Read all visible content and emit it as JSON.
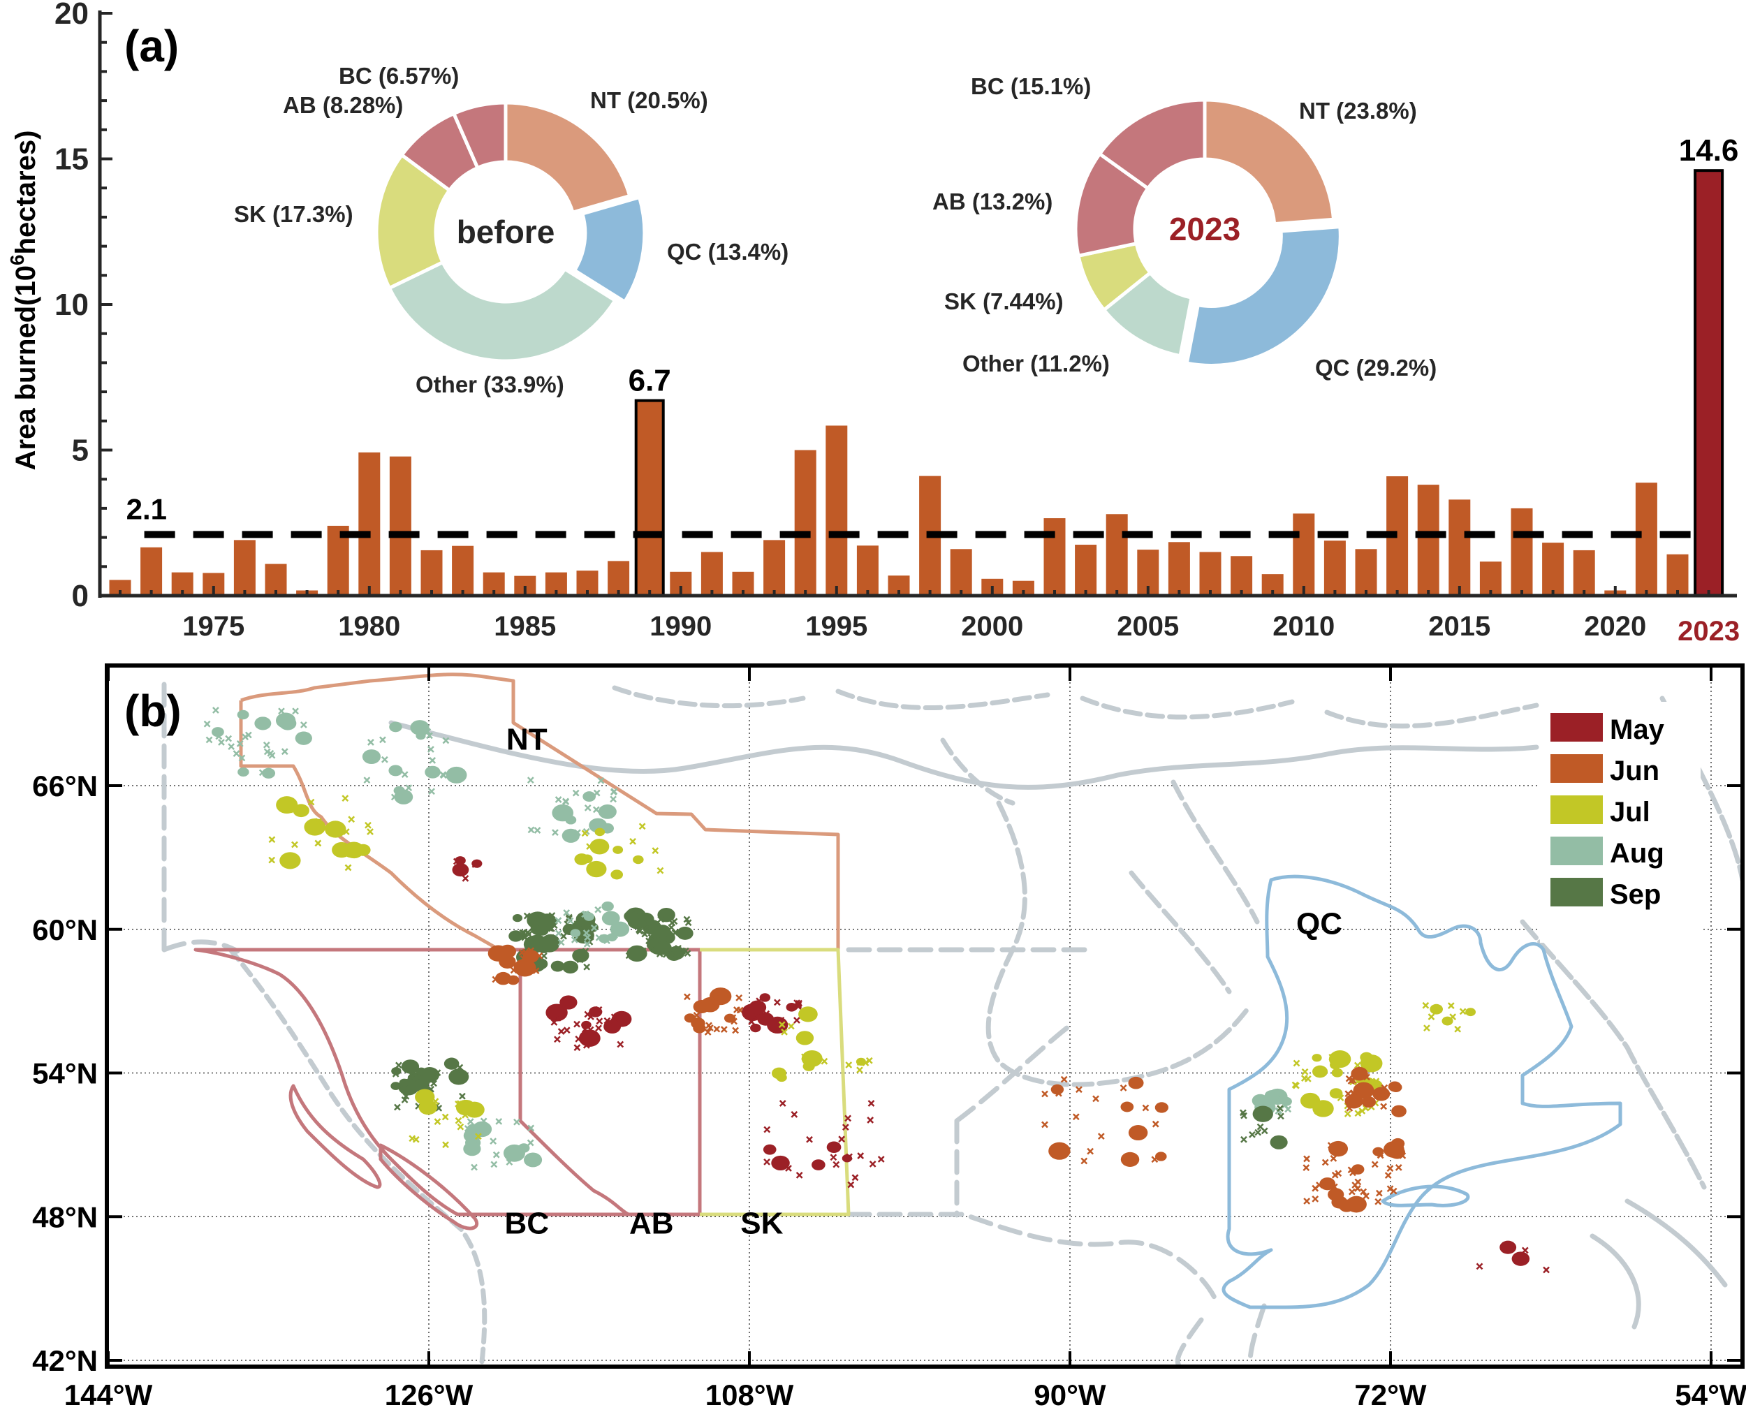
{
  "colors": {
    "bar": "#C05A26",
    "bar_2023": "#9B2026",
    "highlight_year": "#9B2026",
    "NT": "#DA9A7C",
    "QC": "#8DBADA",
    "Other": "#BDD9CC",
    "SK": "#D9DC7D",
    "AB": "#C4777C",
    "BC": "#C4777C",
    "land": "#C3CBD0",
    "May": "#9B2026",
    "Jun": "#C05A26",
    "Jul": "#C2C726",
    "Aug": "#93BDA5",
    "Sep": "#567746"
  },
  "chart_data": [
    {
      "type": "bar",
      "panel_label": "(a)",
      "ylabel": "Area burned(10",
      "ylabel_sup": "6",
      "ylabel_tail": "hectares)",
      "ylim": [
        0,
        20
      ],
      "yticks": [
        "0",
        "5",
        "10",
        "15",
        "20"
      ],
      "xticks": [
        "1975",
        "1980",
        "1985",
        "1990",
        "1995",
        "2000",
        "2005",
        "2010",
        "2015",
        "2020",
        "2023"
      ],
      "categories": [
        1972,
        1973,
        1974,
        1975,
        1976,
        1977,
        1978,
        1979,
        1980,
        1981,
        1982,
        1983,
        1984,
        1985,
        1986,
        1987,
        1988,
        1989,
        1990,
        1991,
        1992,
        1993,
        1994,
        1995,
        1996,
        1997,
        1998,
        1999,
        2000,
        2001,
        2002,
        2003,
        2004,
        2005,
        2006,
        2007,
        2008,
        2009,
        2010,
        2011,
        2012,
        2013,
        2014,
        2015,
        2016,
        2017,
        2018,
        2019,
        2020,
        2021,
        2022,
        2023
      ],
      "values": [
        0.54,
        1.66,
        0.8,
        0.78,
        1.91,
        1.09,
        0.18,
        2.4,
        4.92,
        4.78,
        1.56,
        1.71,
        0.8,
        0.68,
        0.8,
        0.86,
        1.19,
        6.7,
        0.82,
        1.5,
        0.82,
        1.91,
        5.0,
        5.84,
        1.72,
        0.69,
        4.11,
        1.6,
        0.58,
        0.51,
        2.66,
        1.75,
        2.8,
        1.58,
        1.84,
        1.5,
        1.36,
        0.74,
        2.82,
        1.89,
        1.6,
        4.1,
        3.81,
        3.3,
        1.17,
        3.0,
        1.82,
        1.56,
        0.18,
        3.88,
        1.42,
        14.6
      ],
      "mean_line": {
        "value": 2.1,
        "label": "2.1"
      },
      "annotations": [
        {
          "year": 1989,
          "label": "6.7"
        },
        {
          "year": 2023,
          "label": "14.6"
        }
      ]
    },
    {
      "type": "pie",
      "center_label": "before",
      "slices": [
        {
          "name": "NT",
          "value": 20.5,
          "label": "NT (20.5%)"
        },
        {
          "name": "QC",
          "value": 13.4,
          "label": "QC (13.4%)",
          "exploded": true
        },
        {
          "name": "Other",
          "value": 33.9,
          "label": "Other (33.9%)"
        },
        {
          "name": "SK",
          "value": 17.3,
          "label": "SK (17.3%)"
        },
        {
          "name": "AB",
          "value": 8.28,
          "label": "AB (8.28%)"
        },
        {
          "name": "BC",
          "value": 6.57,
          "label": "BC (6.57%)"
        }
      ]
    },
    {
      "type": "pie",
      "center_label": "2023",
      "slices": [
        {
          "name": "NT",
          "value": 23.8,
          "label": "NT (23.8%)"
        },
        {
          "name": "QC",
          "value": 29.2,
          "label": "QC (29.2%)",
          "exploded": true
        },
        {
          "name": "Other",
          "value": 11.2,
          "label": "Other (11.2%)"
        },
        {
          "name": "SK",
          "value": 7.44,
          "label": "SK (7.44%)"
        },
        {
          "name": "AB",
          "value": 13.2,
          "label": "AB (13.2%)"
        },
        {
          "name": "BC",
          "value": 15.1,
          "label": "BC (15.1%)"
        }
      ]
    },
    {
      "type": "scatter",
      "panel_label": "(b)",
      "xlim": [
        -145,
        -51
      ],
      "ylim": [
        41.5,
        71
      ],
      "xticks": [
        {
          "v": -144,
          "t": "144°W"
        },
        {
          "v": -126,
          "t": "126°W"
        },
        {
          "v": -108,
          "t": "108°W"
        },
        {
          "v": -90,
          "t": "90°W"
        },
        {
          "v": -72,
          "t": "72°W"
        },
        {
          "v": -54,
          "t": "54°W"
        }
      ],
      "yticks": [
        {
          "v": 66,
          "t": "66°N"
        },
        {
          "v": 60,
          "t": "60°N"
        },
        {
          "v": 54,
          "t": "54°N"
        },
        {
          "v": 48,
          "t": "48°N"
        },
        {
          "v": 42,
          "t": "42°N"
        }
      ],
      "legend": [
        "May",
        "Jun",
        "Jul",
        "Aug",
        "Sep"
      ],
      "legend_position": "top-right",
      "province_labels": [
        {
          "name": "NT",
          "lon": -120.5,
          "lat": 67.5
        },
        {
          "name": "QC",
          "lon": -76,
          "lat": 59.8
        },
        {
          "name": "BC",
          "lon": -120.5,
          "lat": 47.3
        },
        {
          "name": "AB",
          "lon": -113.5,
          "lat": 47.3
        },
        {
          "name": "SK",
          "lon": -107.3,
          "lat": 47.3
        }
      ],
      "fire_clusters": [
        {
          "month": "Aug",
          "lon": -136,
          "lat": 68,
          "n": 30,
          "spread": 3
        },
        {
          "month": "Aug",
          "lon": -127,
          "lat": 67,
          "n": 25,
          "spread": 3
        },
        {
          "month": "Jul",
          "lon": -132,
          "lat": 64,
          "n": 25,
          "spread": 3
        },
        {
          "month": "Aug",
          "lon": -118,
          "lat": 65,
          "n": 25,
          "spread": 2.5
        },
        {
          "month": "Jul",
          "lon": -115,
          "lat": 63.5,
          "n": 14,
          "spread": 2.5
        },
        {
          "month": "May",
          "lon": -124,
          "lat": 62.5,
          "n": 8,
          "spread": 0.8
        },
        {
          "month": "Sep",
          "lon": -119,
          "lat": 59.5,
          "n": 60,
          "spread": 2.2
        },
        {
          "month": "Sep",
          "lon": -113,
          "lat": 59.8,
          "n": 45,
          "spread": 1.8
        },
        {
          "month": "Aug",
          "lon": -117,
          "lat": 60.2,
          "n": 25,
          "spread": 1.8
        },
        {
          "month": "Jun",
          "lon": -121,
          "lat": 58.5,
          "n": 18,
          "spread": 1.3
        },
        {
          "month": "May",
          "lon": -117,
          "lat": 56,
          "n": 30,
          "spread": 2
        },
        {
          "month": "Jun",
          "lon": -110,
          "lat": 56.5,
          "n": 25,
          "spread": 1.6
        },
        {
          "month": "May",
          "lon": -106.5,
          "lat": 56.5,
          "n": 20,
          "spread": 1.4
        },
        {
          "month": "Sep",
          "lon": -126,
          "lat": 53.5,
          "n": 30,
          "spread": 2
        },
        {
          "month": "Aug",
          "lon": -122,
          "lat": 51,
          "n": 20,
          "spread": 2
        },
        {
          "month": "Jul",
          "lon": -125,
          "lat": 52,
          "n": 18,
          "spread": 2
        },
        {
          "month": "May",
          "lon": -104,
          "lat": 51,
          "n": 25,
          "spread": 3.5
        },
        {
          "month": "Jul",
          "lon": -104,
          "lat": 55,
          "n": 18,
          "spread": 3
        },
        {
          "month": "Jun",
          "lon": -88,
          "lat": 52,
          "n": 22,
          "spread": 3.5
        },
        {
          "month": "Jul",
          "lon": -75,
          "lat": 53.5,
          "n": 40,
          "spread": 2.5
        },
        {
          "month": "Jun",
          "lon": -74,
          "lat": 49.8,
          "n": 45,
          "spread": 2.8
        },
        {
          "month": "Jun",
          "lon": -73,
          "lat": 53.2,
          "n": 22,
          "spread": 1.6
        },
        {
          "month": "Aug",
          "lon": -78.5,
          "lat": 52.8,
          "n": 12,
          "spread": 1
        },
        {
          "month": "Sep",
          "lon": -79,
          "lat": 51.8,
          "n": 12,
          "spread": 1.5
        },
        {
          "month": "Jul",
          "lon": -69,
          "lat": 56.5,
          "n": 10,
          "spread": 1.5
        },
        {
          "month": "May",
          "lon": -65,
          "lat": 46,
          "n": 5,
          "spread": 2
        }
      ]
    }
  ]
}
